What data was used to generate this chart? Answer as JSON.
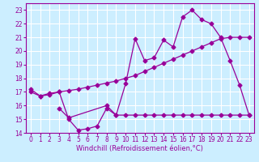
{
  "xlabel": "Windchill (Refroidissement éolien,°C)",
  "bg_color": "#cceeff",
  "grid_color": "#ffffff",
  "line_color": "#990099",
  "ylim": [
    14,
    23.5
  ],
  "xlim": [
    -0.5,
    23.5
  ],
  "yticks": [
    14,
    15,
    16,
    17,
    18,
    19,
    20,
    21,
    22,
    23
  ],
  "xticks": [
    0,
    1,
    2,
    3,
    4,
    5,
    6,
    7,
    8,
    9,
    10,
    11,
    12,
    13,
    14,
    15,
    16,
    17,
    18,
    19,
    20,
    21,
    22,
    23
  ],
  "line1_x": [
    0,
    1,
    2,
    3,
    4,
    5,
    6,
    7,
    8,
    9,
    10,
    11,
    12,
    13,
    14,
    15,
    16,
    17,
    18,
    19,
    20,
    21,
    22,
    23
  ],
  "line1_y": [
    17.0,
    16.7,
    16.9,
    17.0,
    17.1,
    17.2,
    17.35,
    17.5,
    17.65,
    17.8,
    18.0,
    18.2,
    18.5,
    18.8,
    19.1,
    19.4,
    19.7,
    20.0,
    20.3,
    20.6,
    20.9,
    21.0,
    21.0,
    21.0
  ],
  "line2_x": [
    0,
    1,
    2,
    3,
    4,
    5,
    6,
    7,
    8,
    9,
    10,
    11,
    12,
    13,
    14,
    15,
    16,
    17,
    18,
    19,
    20,
    21,
    22,
    23
  ],
  "line2_y": [
    17.2,
    16.7,
    16.8,
    17.0,
    15.0,
    14.2,
    14.3,
    14.5,
    15.8,
    15.3,
    17.6,
    20.9,
    19.3,
    19.5,
    20.8,
    20.3,
    22.5,
    23.0,
    22.3,
    22.0,
    21.0,
    19.3,
    17.5,
    15.3
  ],
  "line3_x": [
    3,
    4,
    8,
    9,
    10,
    11,
    12,
    13,
    14,
    15,
    16,
    17,
    18,
    19,
    20,
    21,
    22,
    23
  ],
  "line3_y": [
    15.8,
    15.1,
    16.0,
    15.3,
    15.3,
    15.3,
    15.3,
    15.3,
    15.3,
    15.3,
    15.3,
    15.3,
    15.3,
    15.3,
    15.3,
    15.3,
    15.3,
    15.3
  ],
  "marker": "D",
  "markersize": 2.5,
  "linewidth": 0.9,
  "xlabel_fontsize": 6.0,
  "tick_labelsize": 5.5
}
